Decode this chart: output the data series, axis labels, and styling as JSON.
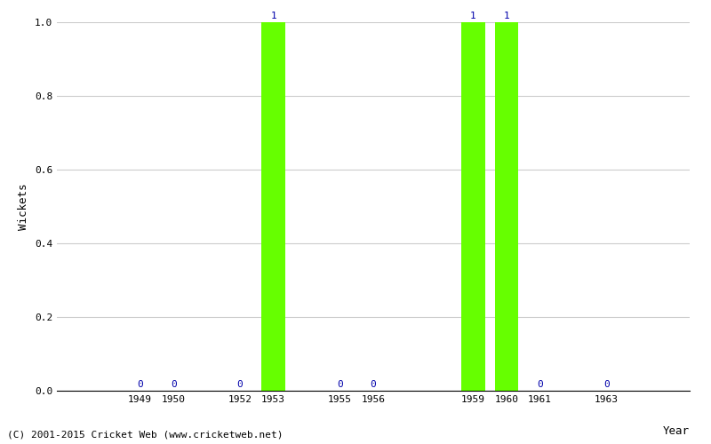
{
  "years": [
    1949,
    1950,
    1952,
    1953,
    1955,
    1956,
    1959,
    1960,
    1961,
    1963
  ],
  "wickets": [
    0,
    0,
    0,
    1,
    0,
    0,
    1,
    1,
    0,
    0
  ],
  "bar_color": "#66ff00",
  "bar_edge_color": "#66ff00",
  "xlabel": "Year",
  "ylabel": "Wickets",
  "ylim": [
    0.0,
    1.0
  ],
  "label_color": "#0000aa",
  "label_fontsize": 8,
  "axis_label_fontsize": 9,
  "tick_fontsize": 8,
  "grid_color": "#cccccc",
  "background_color": "#ffffff",
  "footer_text": "(C) 2001-2015 Cricket Web (www.cricketweb.net)",
  "footer_fontsize": 8,
  "bar_width": 0.7,
  "xlim_left": 1946.5,
  "xlim_right": 1965.5
}
